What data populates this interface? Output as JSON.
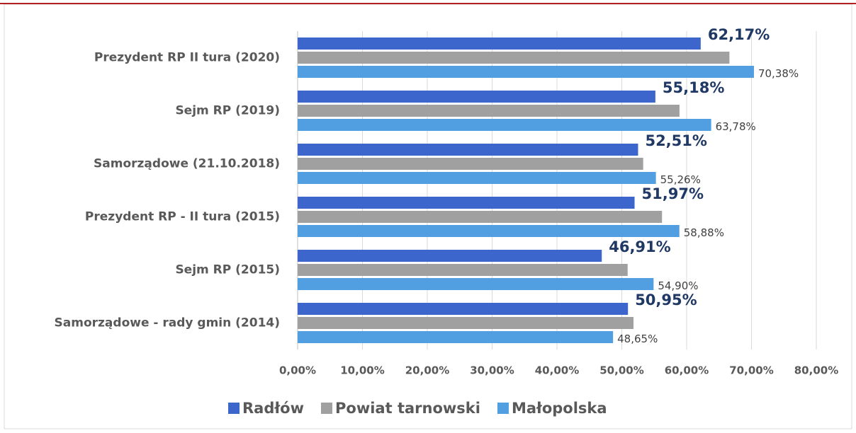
{
  "chart_data": {
    "type": "bar",
    "orientation": "horizontal",
    "categories": [
      "Prezydent RP II tura (2020)",
      "Sejm RP (2019)",
      "Samorządowe (21.10.2018)",
      "Prezydent RP - II tura (2015)",
      "Sejm RP (2015)",
      "Samorządowe - rady gmin (2014)"
    ],
    "series": [
      {
        "name": "Radłów",
        "color": "#3d66cc",
        "values": [
          62.17,
          55.18,
          52.51,
          51.97,
          46.91,
          50.95
        ],
        "value_labels": [
          "62,17%",
          "55,18%",
          "52,51%",
          "51,97%",
          "46,91%",
          "50,95%"
        ]
      },
      {
        "name": "Powiat tarnowski",
        "color": "#a0a0a0",
        "values": [
          66.6,
          58.9,
          53.3,
          56.2,
          50.9,
          51.8
        ]
      },
      {
        "name": "Małopolska",
        "color": "#519ee0",
        "values": [
          70.38,
          63.78,
          55.26,
          58.88,
          54.9,
          48.65
        ],
        "value_labels": [
          "70,38%",
          "63,78%",
          "55,26%",
          "58,88%",
          "54,90%",
          "48,65%"
        ]
      }
    ],
    "xlim": [
      0,
      80
    ],
    "xticks": [
      {
        "value": 0,
        "label": "0,00%"
      },
      {
        "value": 10,
        "label": "10,00%"
      },
      {
        "value": 20,
        "label": "20,00%"
      },
      {
        "value": 30,
        "label": "30,00%"
      },
      {
        "value": 40,
        "label": "40,00%"
      },
      {
        "value": 50,
        "label": "50,00%"
      },
      {
        "value": 60,
        "label": "60,00%"
      },
      {
        "value": 70,
        "label": "70,00%"
      },
      {
        "value": 80,
        "label": "80,00%"
      }
    ],
    "grid": true,
    "legend": "bottom"
  }
}
